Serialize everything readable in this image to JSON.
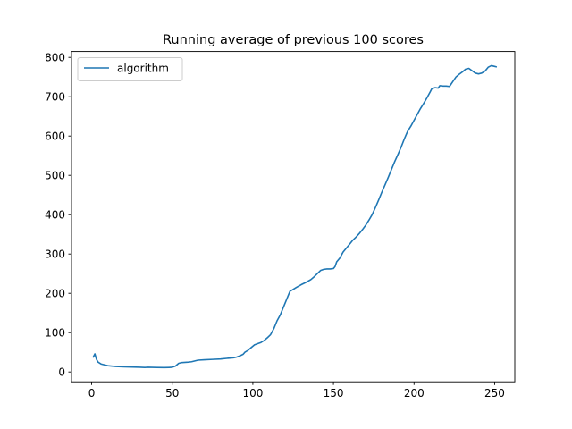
{
  "chart_data": {
    "type": "line",
    "title": "Running average of previous 100 scores",
    "xlabel": "",
    "ylabel": "",
    "xlim": [
      -12.5,
      262.5
    ],
    "ylim": [
      -25,
      815
    ],
    "xticks": [
      0,
      50,
      100,
      150,
      200,
      250
    ],
    "yticks": [
      0,
      100,
      200,
      300,
      400,
      500,
      600,
      700,
      800
    ],
    "grid": false,
    "legend_position": "top-left",
    "series": [
      {
        "name": "algorithm",
        "color": "#1f77b4",
        "points": [
          [
            1,
            38
          ],
          [
            2,
            46
          ],
          [
            3,
            32
          ],
          [
            4,
            25
          ],
          [
            6,
            20
          ],
          [
            8,
            18
          ],
          [
            10,
            16
          ],
          [
            15,
            14
          ],
          [
            20,
            13
          ],
          [
            25,
            12.5
          ],
          [
            30,
            12
          ],
          [
            33,
            11.5
          ],
          [
            35,
            12
          ],
          [
            40,
            11.5
          ],
          [
            45,
            11
          ],
          [
            48,
            11.5
          ],
          [
            50,
            12
          ],
          [
            52,
            15
          ],
          [
            54,
            22
          ],
          [
            56,
            24
          ],
          [
            60,
            25
          ],
          [
            62,
            26
          ],
          [
            64,
            28
          ],
          [
            66,
            30
          ],
          [
            70,
            31
          ],
          [
            75,
            32
          ],
          [
            80,
            33
          ],
          [
            85,
            35
          ],
          [
            88,
            36
          ],
          [
            90,
            38
          ],
          [
            92,
            41
          ],
          [
            94,
            45
          ],
          [
            95,
            50
          ],
          [
            97,
            55
          ],
          [
            99,
            62
          ],
          [
            101,
            69
          ],
          [
            103,
            72
          ],
          [
            105,
            75
          ],
          [
            107,
            80
          ],
          [
            109,
            87
          ],
          [
            111,
            95
          ],
          [
            113,
            110
          ],
          [
            115,
            130
          ],
          [
            117,
            145
          ],
          [
            119,
            165
          ],
          [
            121,
            185
          ],
          [
            123,
            205
          ],
          [
            125,
            210
          ],
          [
            127,
            215
          ],
          [
            130,
            222
          ],
          [
            133,
            228
          ],
          [
            136,
            235
          ],
          [
            138,
            242
          ],
          [
            140,
            250
          ],
          [
            142,
            258
          ],
          [
            144,
            261
          ],
          [
            146,
            262
          ],
          [
            148,
            262
          ],
          [
            150,
            263
          ],
          [
            151,
            268
          ],
          [
            152,
            280
          ],
          [
            154,
            290
          ],
          [
            156,
            305
          ],
          [
            158,
            315
          ],
          [
            160,
            325
          ],
          [
            162,
            335
          ],
          [
            164,
            343
          ],
          [
            166,
            352
          ],
          [
            168,
            362
          ],
          [
            170,
            373
          ],
          [
            172,
            386
          ],
          [
            174,
            400
          ],
          [
            176,
            418
          ],
          [
            178,
            437
          ],
          [
            180,
            457
          ],
          [
            182,
            476
          ],
          [
            184,
            495
          ],
          [
            186,
            515
          ],
          [
            188,
            535
          ],
          [
            190,
            553
          ],
          [
            192,
            572
          ],
          [
            194,
            593
          ],
          [
            196,
            612
          ],
          [
            198,
            625
          ],
          [
            200,
            640
          ],
          [
            202,
            655
          ],
          [
            204,
            670
          ],
          [
            206,
            683
          ],
          [
            208,
            697
          ],
          [
            210,
            712
          ],
          [
            211,
            720
          ],
          [
            213,
            723
          ],
          [
            215,
            722
          ],
          [
            216,
            728
          ],
          [
            218,
            727
          ],
          [
            220,
            727
          ],
          [
            222,
            726
          ],
          [
            224,
            738
          ],
          [
            226,
            750
          ],
          [
            228,
            757
          ],
          [
            230,
            763
          ],
          [
            232,
            770
          ],
          [
            234,
            772
          ],
          [
            236,
            766
          ],
          [
            238,
            760
          ],
          [
            240,
            758
          ],
          [
            242,
            760
          ],
          [
            244,
            765
          ],
          [
            246,
            775
          ],
          [
            248,
            779
          ],
          [
            250,
            777
          ],
          [
            251,
            776
          ]
        ]
      }
    ]
  }
}
